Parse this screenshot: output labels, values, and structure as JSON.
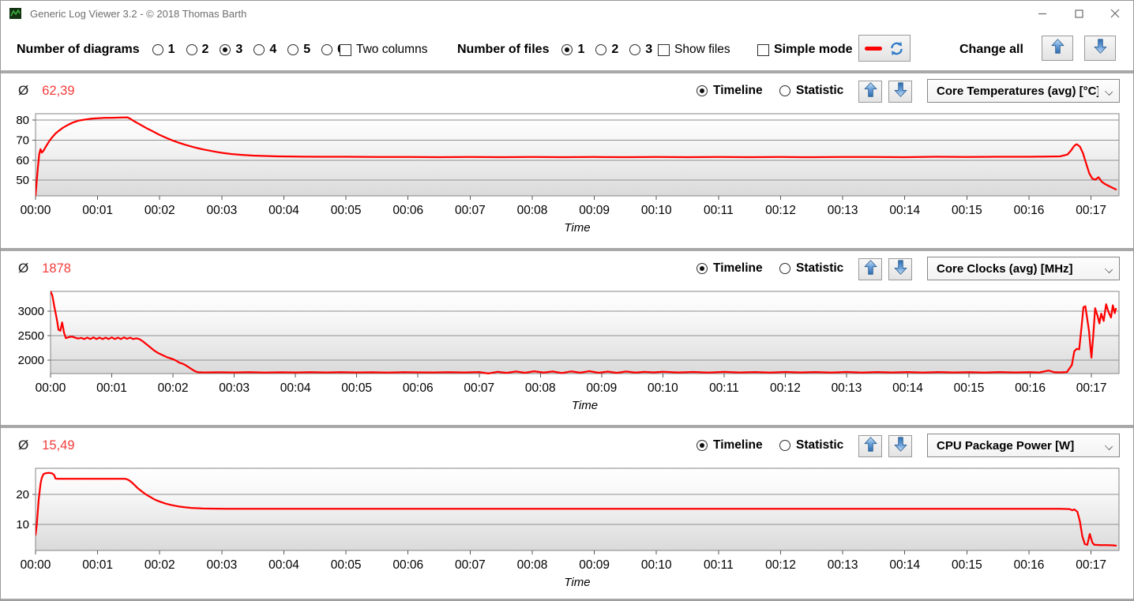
{
  "window": {
    "title": "Generic Log Viewer 3.2 - © 2018 Thomas Barth",
    "minimize": "–",
    "maximize": "",
    "close": ""
  },
  "colors": {
    "series_red": "#ff0000",
    "avg_value_red": "#f23b3b",
    "accent_blue": "#2e79c7",
    "separator_gray": "#a8a8a8"
  },
  "toolbar": {
    "diagrams_label": "Number of diagrams",
    "diagram_options": [
      "1",
      "2",
      "3",
      "4",
      "5",
      "6"
    ],
    "diagrams_selected": "3",
    "two_columns_label": "Two columns",
    "two_columns_checked": false,
    "files_label": "Number of files",
    "file_options": [
      "1",
      "2",
      "3"
    ],
    "files_selected": "1",
    "show_files_label": "Show files",
    "show_files_checked": false,
    "simple_mode_label": "Simple mode",
    "simple_mode_checked": false,
    "change_all_label": "Change all"
  },
  "panels": [
    {
      "avg_symbol": "Ø",
      "avg": "62,39",
      "timeline_label": "Timeline",
      "statistic_label": "Statistic",
      "mode_selected": "Timeline",
      "dropdown": "Core Temperatures (avg) [°C]"
    },
    {
      "avg_symbol": "Ø",
      "avg": "1878",
      "timeline_label": "Timeline",
      "statistic_label": "Statistic",
      "mode_selected": "Timeline",
      "dropdown": "Core Clocks (avg) [MHz]"
    },
    {
      "avg_symbol": "Ø",
      "avg": "15,49",
      "timeline_label": "Timeline",
      "statistic_label": "Statistic",
      "mode_selected": "Timeline",
      "dropdown": "CPU Package Power [W]"
    }
  ],
  "chart_data": [
    {
      "type": "line",
      "title": "Core Temperatures (avg) [°C]",
      "average": 62.39,
      "xlabel": "Time",
      "ylabel": "",
      "xlim": [
        0,
        17.45
      ],
      "ylim": [
        42.2,
        83.2
      ],
      "yticks": [
        50,
        60,
        70,
        80
      ],
      "xticks_minutes": [
        0,
        1,
        2,
        3,
        4,
        5,
        6,
        7,
        8,
        9,
        10,
        11,
        12,
        13,
        14,
        15,
        16,
        17
      ],
      "xtick_labels": [
        "00:00",
        "00:01",
        "00:02",
        "00:03",
        "00:04",
        "00:05",
        "00:06",
        "00:07",
        "00:08",
        "00:09",
        "00:10",
        "00:11",
        "00:12",
        "00:13",
        "00:14",
        "00:15",
        "00:16",
        "00:17"
      ],
      "line_color": "#ff0000",
      "grid": true,
      "points": [
        [
          0,
          42.5
        ],
        [
          0.02,
          50
        ],
        [
          0.04,
          57
        ],
        [
          0.06,
          63
        ],
        [
          0.08,
          65.5
        ],
        [
          0.1,
          63.8
        ],
        [
          0.13,
          64.8
        ],
        [
          0.17,
          67
        ],
        [
          0.22,
          69.5
        ],
        [
          0.27,
          71.5
        ],
        [
          0.32,
          73.3
        ],
        [
          0.38,
          74.8
        ],
        [
          0.44,
          76.2
        ],
        [
          0.52,
          77.6
        ],
        [
          0.6,
          78.8
        ],
        [
          0.7,
          79.8
        ],
        [
          0.8,
          80.3
        ],
        [
          0.9,
          80.7
        ],
        [
          1,
          80.9
        ],
        [
          1.1,
          81.1
        ],
        [
          1.25,
          81.2
        ],
        [
          1.4,
          81.3
        ],
        [
          1.48,
          81.4
        ],
        [
          1.52,
          80.8
        ],
        [
          1.58,
          79.6
        ],
        [
          1.65,
          78.4
        ],
        [
          1.72,
          77.2
        ],
        [
          1.8,
          75.8
        ],
        [
          1.9,
          74.2
        ],
        [
          2,
          72.6
        ],
        [
          2.1,
          71.2
        ],
        [
          2.2,
          69.9
        ],
        [
          2.3,
          68.8
        ],
        [
          2.4,
          67.8
        ],
        [
          2.5,
          66.9
        ],
        [
          2.6,
          66.1
        ],
        [
          2.7,
          65.4
        ],
        [
          2.8,
          64.8
        ],
        [
          2.9,
          64.2
        ],
        [
          3,
          63.7
        ],
        [
          3.15,
          63.1
        ],
        [
          3.3,
          62.7
        ],
        [
          3.5,
          62.3
        ],
        [
          3.7,
          62.1
        ],
        [
          3.9,
          61.9
        ],
        [
          4.2,
          61.8
        ],
        [
          4.6,
          61.7
        ],
        [
          5,
          61.7
        ],
        [
          5.5,
          61.6
        ],
        [
          6,
          61.6
        ],
        [
          6.5,
          61.5
        ],
        [
          7,
          61.6
        ],
        [
          7.5,
          61.5
        ],
        [
          8,
          61.6
        ],
        [
          8.5,
          61.5
        ],
        [
          9,
          61.6
        ],
        [
          9.5,
          61.5
        ],
        [
          10,
          61.6
        ],
        [
          10.5,
          61.5
        ],
        [
          11,
          61.6
        ],
        [
          11.5,
          61.5
        ],
        [
          12,
          61.6
        ],
        [
          12.5,
          61.5
        ],
        [
          13,
          61.6
        ],
        [
          13.5,
          61.6
        ],
        [
          14,
          61.5
        ],
        [
          14.5,
          61.7
        ],
        [
          15,
          61.6
        ],
        [
          15.5,
          61.7
        ],
        [
          16,
          61.7
        ],
        [
          16.3,
          61.8
        ],
        [
          16.5,
          61.9
        ],
        [
          16.62,
          62.8
        ],
        [
          16.68,
          65
        ],
        [
          16.73,
          67.2
        ],
        [
          16.77,
          68
        ],
        [
          16.82,
          66.8
        ],
        [
          16.87,
          63.5
        ],
        [
          16.92,
          58.5
        ],
        [
          16.97,
          53.5
        ],
        [
          17.02,
          50.8
        ],
        [
          17.07,
          50.3
        ],
        [
          17.12,
          51.5
        ],
        [
          17.17,
          49.3
        ],
        [
          17.22,
          48.2
        ],
        [
          17.28,
          47.2
        ],
        [
          17.34,
          46.3
        ],
        [
          17.4,
          45.4
        ]
      ]
    },
    {
      "type": "line",
      "title": "Core Clocks (avg) [MHz]",
      "average": 1878,
      "xlabel": "Time",
      "ylabel": "",
      "xlim": [
        0,
        17.45
      ],
      "ylim": [
        1726,
        3403
      ],
      "yticks": [
        2000,
        2500,
        3000
      ],
      "xticks_minutes": [
        0,
        1,
        2,
        3,
        4,
        5,
        6,
        7,
        8,
        9,
        10,
        11,
        12,
        13,
        14,
        15,
        16,
        17
      ],
      "xtick_labels": [
        "00:00",
        "00:01",
        "00:02",
        "00:03",
        "00:04",
        "00:05",
        "00:06",
        "00:07",
        "00:08",
        "00:09",
        "00:10",
        "00:11",
        "00:12",
        "00:13",
        "00:14",
        "00:15",
        "00:16",
        "00:17"
      ],
      "line_color": "#ff0000",
      "grid": true,
      "points": [
        [
          0,
          3400
        ],
        [
          0.03,
          3320
        ],
        [
          0.06,
          3100
        ],
        [
          0.1,
          2850
        ],
        [
          0.13,
          2620
        ],
        [
          0.16,
          2600
        ],
        [
          0.19,
          2770
        ],
        [
          0.22,
          2560
        ],
        [
          0.25,
          2450
        ],
        [
          0.3,
          2470
        ],
        [
          0.35,
          2480
        ],
        [
          0.4,
          2460
        ],
        [
          0.45,
          2440
        ],
        [
          0.5,
          2455
        ],
        [
          0.55,
          2430
        ],
        [
          0.6,
          2460
        ],
        [
          0.65,
          2430
        ],
        [
          0.7,
          2465
        ],
        [
          0.75,
          2430
        ],
        [
          0.8,
          2460
        ],
        [
          0.85,
          2430
        ],
        [
          0.9,
          2460
        ],
        [
          0.95,
          2430
        ],
        [
          1,
          2465
        ],
        [
          1.05,
          2430
        ],
        [
          1.1,
          2460
        ],
        [
          1.15,
          2430
        ],
        [
          1.2,
          2465
        ],
        [
          1.25,
          2435
        ],
        [
          1.3,
          2460
        ],
        [
          1.35,
          2430
        ],
        [
          1.4,
          2445
        ],
        [
          1.45,
          2430
        ],
        [
          1.5,
          2390
        ],
        [
          1.55,
          2340
        ],
        [
          1.6,
          2290
        ],
        [
          1.65,
          2240
        ],
        [
          1.7,
          2190
        ],
        [
          1.75,
          2150
        ],
        [
          1.8,
          2120
        ],
        [
          1.85,
          2090
        ],
        [
          1.9,
          2060
        ],
        [
          1.95,
          2040
        ],
        [
          2,
          2020
        ],
        [
          2.05,
          1990
        ],
        [
          2.1,
          1950
        ],
        [
          2.15,
          1930
        ],
        [
          2.2,
          1900
        ],
        [
          2.25,
          1860
        ],
        [
          2.3,
          1820
        ],
        [
          2.35,
          1780
        ],
        [
          2.4,
          1755
        ],
        [
          2.5,
          1748
        ],
        [
          2.75,
          1752
        ],
        [
          3,
          1748
        ],
        [
          3.25,
          1753
        ],
        [
          3.5,
          1747
        ],
        [
          3.75,
          1752
        ],
        [
          4,
          1749
        ],
        [
          4.25,
          1754
        ],
        [
          4.5,
          1748
        ],
        [
          4.75,
          1753
        ],
        [
          5,
          1749
        ],
        [
          5.25,
          1752
        ],
        [
          5.5,
          1747
        ],
        [
          5.75,
          1753
        ],
        [
          6,
          1750
        ],
        [
          6.25,
          1748
        ],
        [
          6.5,
          1754
        ],
        [
          6.75,
          1749
        ],
        [
          7,
          1756
        ],
        [
          7.15,
          1728
        ],
        [
          7.3,
          1762
        ],
        [
          7.45,
          1740
        ],
        [
          7.6,
          1768
        ],
        [
          7.75,
          1742
        ],
        [
          7.9,
          1772
        ],
        [
          8.05,
          1745
        ],
        [
          8.2,
          1768
        ],
        [
          8.35,
          1738
        ],
        [
          8.5,
          1770
        ],
        [
          8.65,
          1744
        ],
        [
          8.8,
          1774
        ],
        [
          8.95,
          1742
        ],
        [
          9.1,
          1766
        ],
        [
          9.25,
          1740
        ],
        [
          9.4,
          1768
        ],
        [
          9.55,
          1745
        ],
        [
          9.7,
          1760
        ],
        [
          9.85,
          1750
        ],
        [
          10,
          1762
        ],
        [
          10.25,
          1748
        ],
        [
          10.5,
          1758
        ],
        [
          10.75,
          1746
        ],
        [
          11,
          1760
        ],
        [
          11.25,
          1748
        ],
        [
          11.5,
          1757
        ],
        [
          11.75,
          1747
        ],
        [
          12,
          1759
        ],
        [
          12.25,
          1748
        ],
        [
          12.5,
          1756
        ],
        [
          12.75,
          1746
        ],
        [
          13,
          1758
        ],
        [
          13.25,
          1747
        ],
        [
          13.5,
          1757
        ],
        [
          13.75,
          1748
        ],
        [
          14,
          1756
        ],
        [
          14.25,
          1746
        ],
        [
          14.5,
          1757
        ],
        [
          14.75,
          1748
        ],
        [
          15,
          1755
        ],
        [
          15.25,
          1747
        ],
        [
          15.5,
          1756
        ],
        [
          15.75,
          1748
        ],
        [
          16,
          1754
        ],
        [
          16.15,
          1748
        ],
        [
          16.3,
          1788
        ],
        [
          16.4,
          1752
        ],
        [
          16.5,
          1750
        ],
        [
          16.6,
          1756
        ],
        [
          16.68,
          1900
        ],
        [
          16.72,
          2180
        ],
        [
          16.76,
          2230
        ],
        [
          16.8,
          2220
        ],
        [
          16.84,
          2700
        ],
        [
          16.87,
          3080
        ],
        [
          16.9,
          3100
        ],
        [
          16.93,
          2850
        ],
        [
          16.96,
          2600
        ],
        [
          16.98,
          2300
        ],
        [
          17,
          2050
        ],
        [
          17.03,
          2500
        ],
        [
          17.06,
          3060
        ],
        [
          17.1,
          2900
        ],
        [
          17.13,
          2750
        ],
        [
          17.16,
          2950
        ],
        [
          17.2,
          2800
        ],
        [
          17.24,
          3140
        ],
        [
          17.28,
          2980
        ],
        [
          17.32,
          2870
        ],
        [
          17.35,
          3120
        ],
        [
          17.38,
          2960
        ],
        [
          17.4,
          3050
        ]
      ]
    },
    {
      "type": "line",
      "title": "CPU Package Power [W]",
      "average": 15.49,
      "xlabel": "Time",
      "ylabel": "",
      "xlim": [
        0,
        17.45
      ],
      "ylim": [
        1.3,
        28.7
      ],
      "yticks": [
        10,
        20
      ],
      "xticks_minutes": [
        0,
        1,
        2,
        3,
        4,
        5,
        6,
        7,
        8,
        9,
        10,
        11,
        12,
        13,
        14,
        15,
        16,
        17
      ],
      "xtick_labels": [
        "00:00",
        "00:01",
        "00:02",
        "00:03",
        "00:04",
        "00:05",
        "00:06",
        "00:07",
        "00:08",
        "00:09",
        "00:10",
        "00:11",
        "00:12",
        "00:13",
        "00:14",
        "00:15",
        "00:16",
        "00:17"
      ],
      "line_color": "#ff0000",
      "grid": true,
      "points": [
        [
          0,
          6.5
        ],
        [
          0.02,
          10
        ],
        [
          0.05,
          18
        ],
        [
          0.08,
          23.5
        ],
        [
          0.1,
          25.5
        ],
        [
          0.13,
          26.8
        ],
        [
          0.17,
          27.1
        ],
        [
          0.22,
          27.2
        ],
        [
          0.27,
          27
        ],
        [
          0.3,
          26.5
        ],
        [
          0.32,
          25.3
        ],
        [
          0.35,
          25.2
        ],
        [
          0.6,
          25.2
        ],
        [
          0.9,
          25.2
        ],
        [
          1.2,
          25.2
        ],
        [
          1.45,
          25.2
        ],
        [
          1.5,
          24.8
        ],
        [
          1.55,
          24
        ],
        [
          1.6,
          23
        ],
        [
          1.65,
          22
        ],
        [
          1.7,
          21.2
        ],
        [
          1.75,
          20.4
        ],
        [
          1.8,
          19.7
        ],
        [
          1.85,
          19.1
        ],
        [
          1.9,
          18.5
        ],
        [
          1.95,
          18
        ],
        [
          2,
          17.6
        ],
        [
          2.1,
          16.9
        ],
        [
          2.2,
          16.4
        ],
        [
          2.3,
          16
        ],
        [
          2.4,
          15.7
        ],
        [
          2.5,
          15.5
        ],
        [
          2.7,
          15.3
        ],
        [
          2.9,
          15.25
        ],
        [
          3.1,
          15.2
        ],
        [
          3.5,
          15.2
        ],
        [
          4,
          15.2
        ],
        [
          5,
          15.2
        ],
        [
          6,
          15.2
        ],
        [
          7,
          15.2
        ],
        [
          8,
          15.2
        ],
        [
          9,
          15.2
        ],
        [
          10,
          15.2
        ],
        [
          11,
          15.2
        ],
        [
          12,
          15.2
        ],
        [
          13,
          15.2
        ],
        [
          14,
          15.2
        ],
        [
          15,
          15.2
        ],
        [
          16,
          15.2
        ],
        [
          16.5,
          15.2
        ],
        [
          16.65,
          15.1
        ],
        [
          16.7,
          14.7
        ],
        [
          16.73,
          15
        ],
        [
          16.78,
          14.2
        ],
        [
          16.82,
          11
        ],
        [
          16.86,
          6
        ],
        [
          16.9,
          3.4
        ],
        [
          16.94,
          3.2
        ],
        [
          16.98,
          6.8
        ],
        [
          17.02,
          4
        ],
        [
          17.05,
          3.2
        ],
        [
          17.15,
          3.1
        ],
        [
          17.25,
          3.1
        ],
        [
          17.35,
          3
        ],
        [
          17.4,
          2.9
        ]
      ]
    }
  ]
}
